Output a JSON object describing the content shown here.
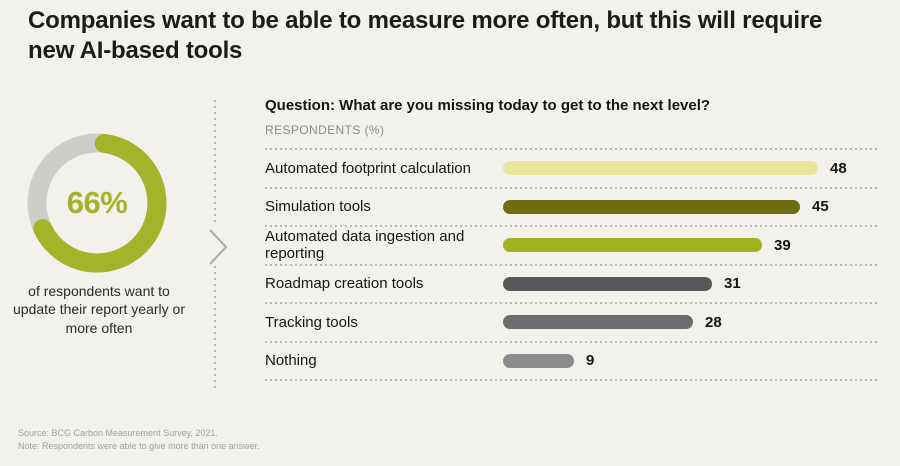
{
  "title": "Companies want to be able to measure more often, but this will require new AI-based tools",
  "chart_data": [
    {
      "type": "donut",
      "percent": 66,
      "value_label": "66%",
      "caption": "of respondents want to update their report yearly or more often",
      "color": "#a3b42a",
      "track_color": "#cdcdca",
      "legend_position": "none"
    },
    {
      "type": "bar",
      "orientation": "horizontal",
      "title": "Question: What are you missing today to get to the next level?",
      "units_label": "RESPONDENTS (%)",
      "categories": [
        "Automated footprint calculation",
        "Simulation tools",
        "Automated data ingestion and reporting",
        "Roadmap creation tools",
        "Tracking tools",
        "Nothing"
      ],
      "values": [
        48,
        45,
        39,
        31,
        28,
        9
      ],
      "bar_colors": [
        "#e9e79b",
        "#6f6c12",
        "#a0b220",
        "#57585a",
        "#6b6c6e",
        "#8b8c8e"
      ],
      "xlim": [
        0,
        50
      ],
      "value_labels_shown": true,
      "grid": false
    }
  ],
  "separator": {
    "chevron_icon": "chevron-right"
  },
  "footer": {
    "source": "Source: BCG Carbon Measurement Survey, 2021.",
    "note": "Note: Respondents were able to give more than one answer."
  }
}
